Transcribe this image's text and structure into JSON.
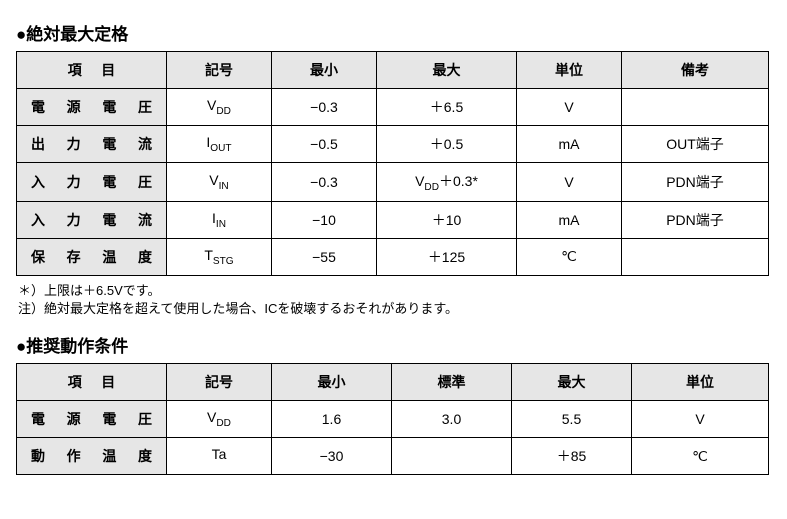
{
  "section1": {
    "title": "●絶対最大定格",
    "headers": {
      "item": "項目",
      "symbol": "記号",
      "min": "最小",
      "max": "最大",
      "unit": "単位",
      "remark": "備考"
    },
    "rows": [
      {
        "item": "電源電圧",
        "sym_main": "V",
        "sym_sub": "DD",
        "min": "−0.3",
        "max": "＋6.5",
        "unit": "V",
        "remark": ""
      },
      {
        "item": "出力電流",
        "sym_main": "I",
        "sym_sub": "OUT",
        "min": "−0.5",
        "max": "＋0.5",
        "unit": "mA",
        "remark": "OUT端子"
      },
      {
        "item": "入力電圧",
        "sym_main": "V",
        "sym_sub": "IN",
        "min": "−0.3",
        "max_pre": "V",
        "max_sub": "DD",
        "max_post": "＋0.3*",
        "unit": "V",
        "remark": "PDN端子"
      },
      {
        "item": "入力電流",
        "sym_main": "I",
        "sym_sub": "IN",
        "min": "−10",
        "max": "＋10",
        "unit": "mA",
        "remark": "PDN端子"
      },
      {
        "item": "保存温度",
        "sym_main": "T",
        "sym_sub": "STG",
        "min": "−55",
        "max": "＋125",
        "unit": "℃",
        "remark": ""
      }
    ],
    "notes": [
      "＊）上限は＋6.5Vです。",
      "注）絶対最大定格を超えて使用した場合、ICを破壊するおそれがあります。"
    ]
  },
  "section2": {
    "title": "●推奨動作条件",
    "headers": {
      "item": "項目",
      "symbol": "記号",
      "min": "最小",
      "typ": "標準",
      "max": "最大",
      "unit": "単位"
    },
    "rows": [
      {
        "item": "電源電圧",
        "sym_main": "V",
        "sym_sub": "DD",
        "min": "1.6",
        "typ": "3.0",
        "max": "5.5",
        "unit": "V"
      },
      {
        "item": "動作温度",
        "sym_main": "Ta",
        "sym_sub": "",
        "min": "−30",
        "typ": "",
        "max": "＋85",
        "unit": "℃"
      }
    ]
  }
}
